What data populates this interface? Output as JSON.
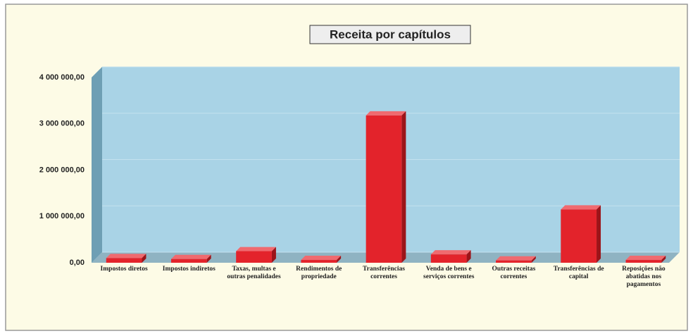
{
  "chart_data": {
    "type": "bar",
    "title": "Receita por capítulos",
    "categories": [
      "Impostos diretos",
      "Impostos indiretos",
      "Taxas, multas e outras penalidades",
      "Rendimentos de propriedade",
      "Transferências correntes",
      "Venda de bens e serviços correntes",
      "Outras receitas correntes",
      "Transferências de capital",
      "Reposições não abatidas nos pagamentos"
    ],
    "values": [
      100000,
      80000,
      250000,
      60000,
      3180000,
      180000,
      50000,
      1150000,
      60000
    ],
    "color": "#e3232b",
    "ylim": [
      0,
      4000000
    ],
    "yticks": [
      {
        "value": 0,
        "label": "0,00"
      },
      {
        "value": 1000000,
        "label": "1 000 000,00"
      },
      {
        "value": 2000000,
        "label": "2 000 000,00"
      },
      {
        "value": 3000000,
        "label": "3 000 000,00"
      },
      {
        "value": 4000000,
        "label": "4 000 000,00"
      }
    ],
    "grid": true
  }
}
